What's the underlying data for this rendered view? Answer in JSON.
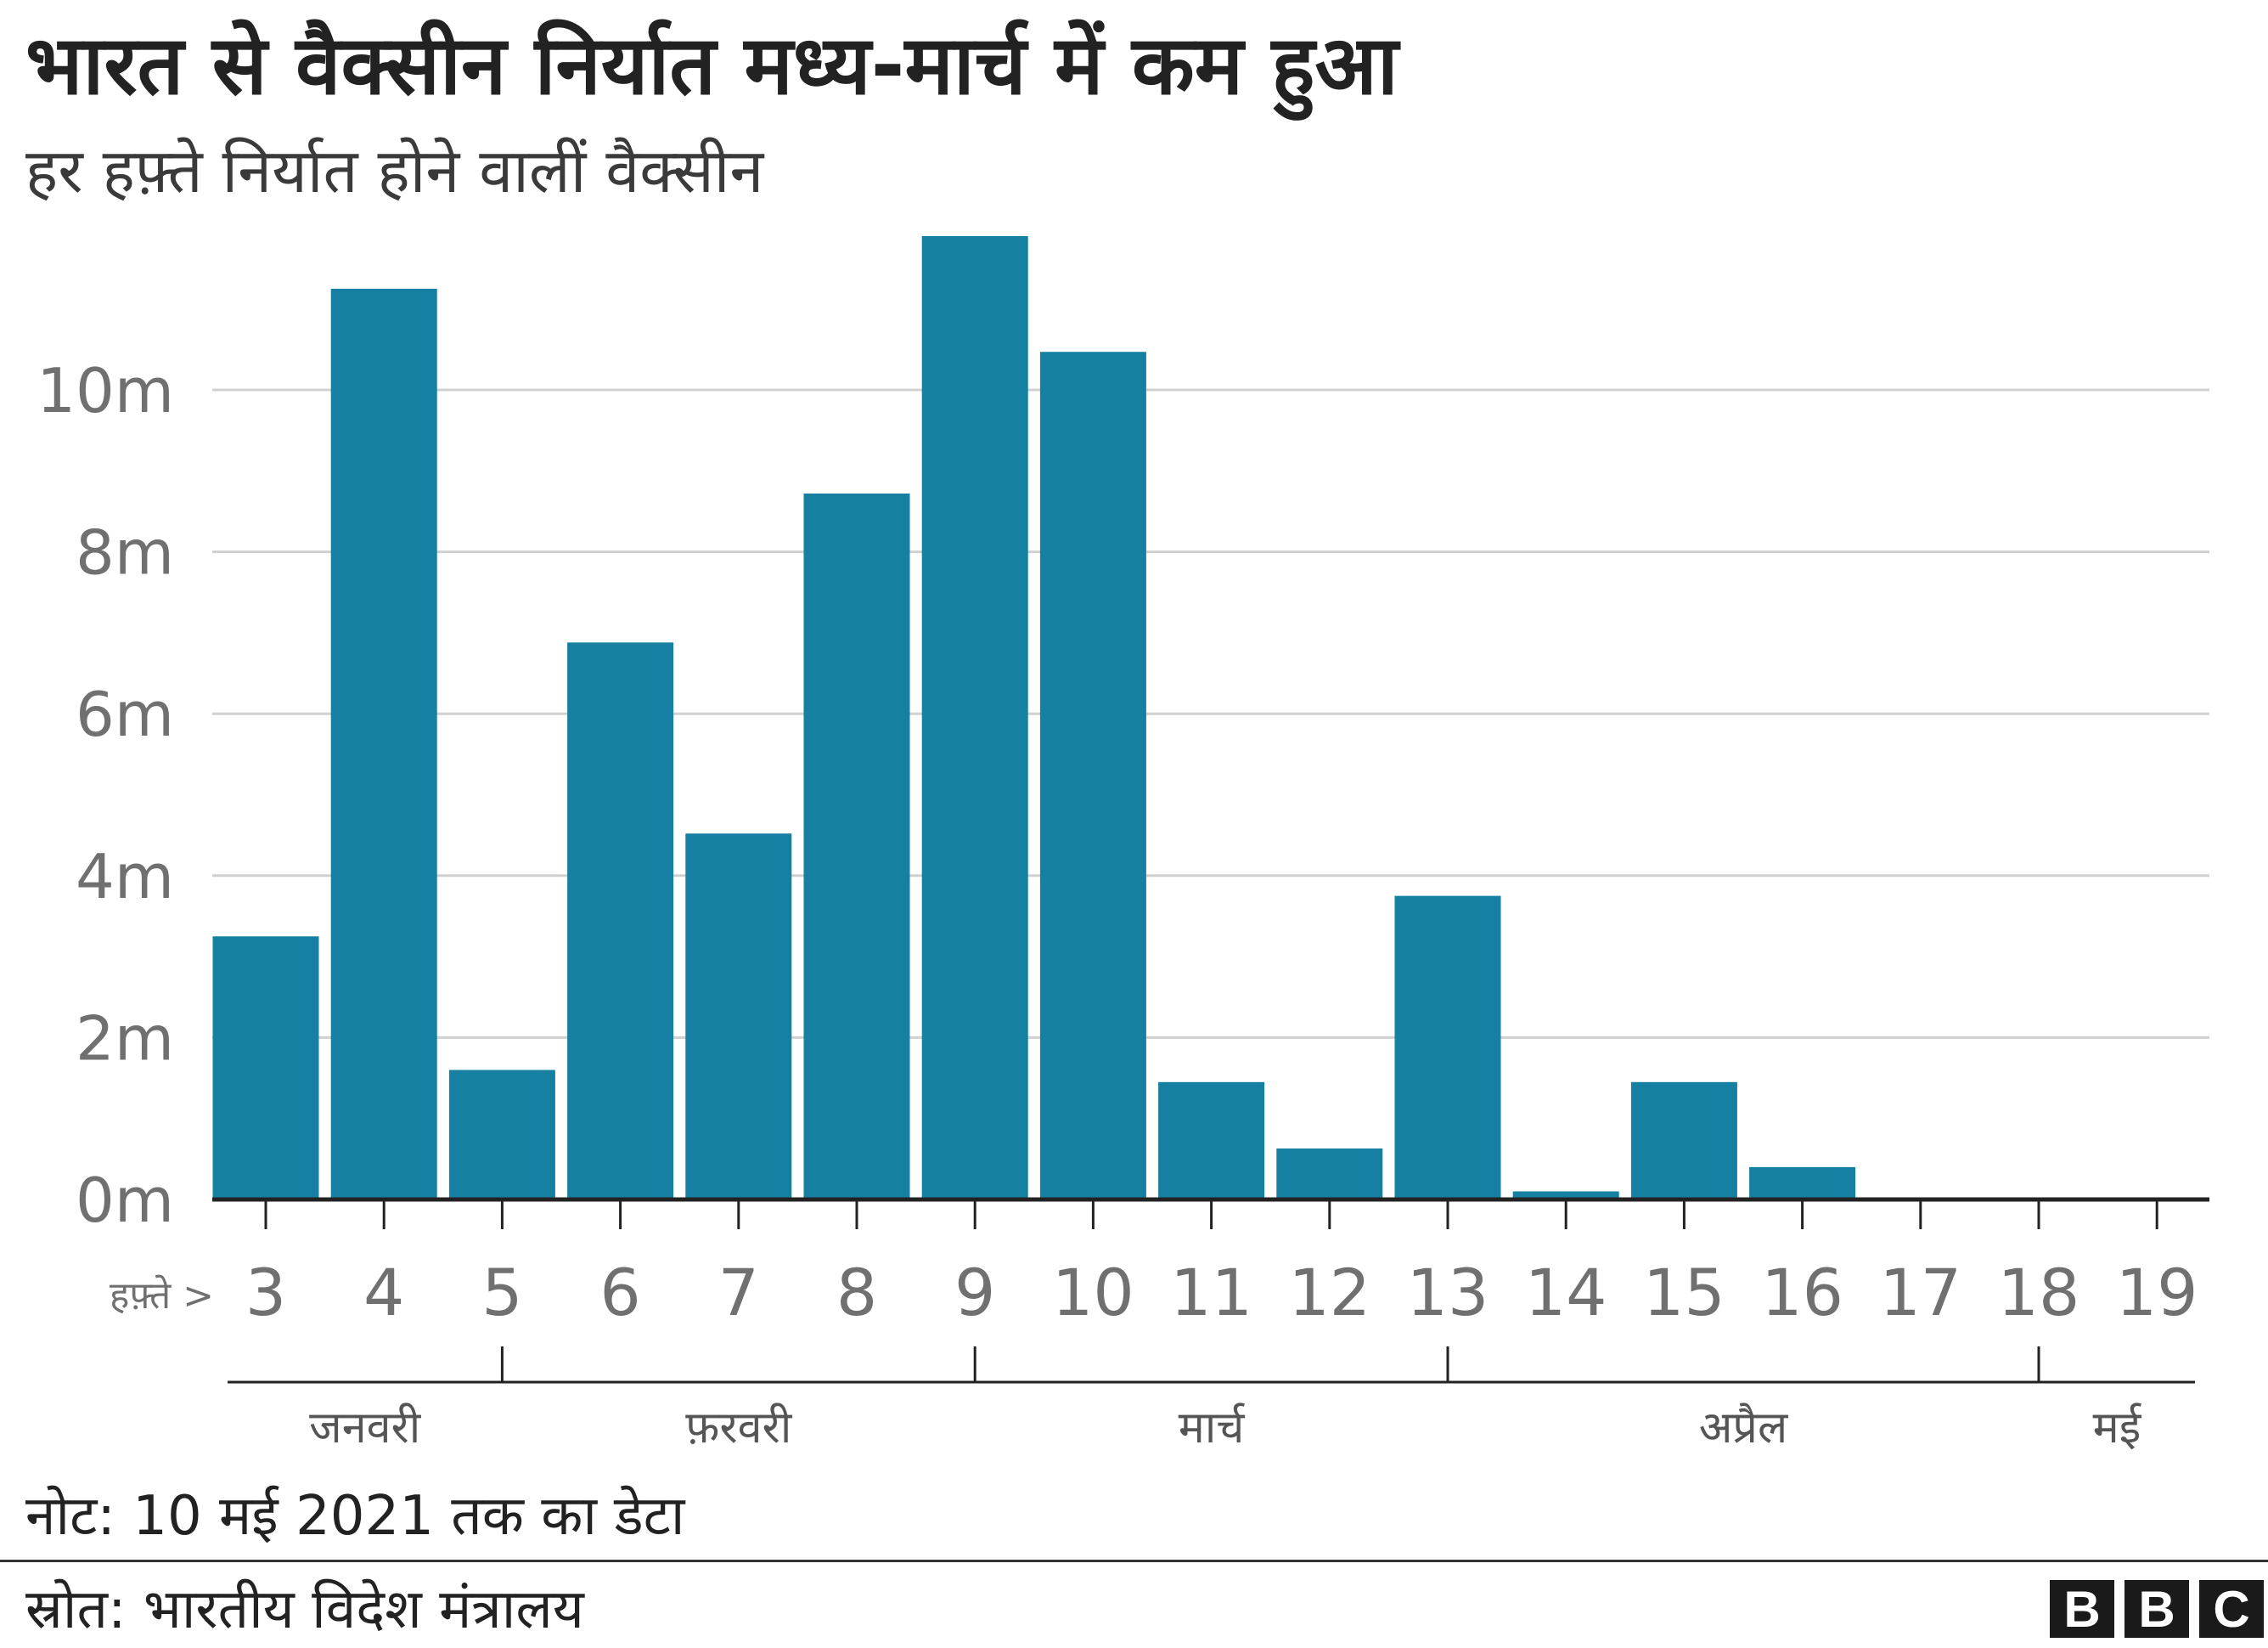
{
  "title": "भारत से वैक्सीन निर्यात मध्य-मार्च में कम हुआ",
  "subtitle": "हर हफ़्ते निर्यात होने वालीं वैक्सीन",
  "note": "नोट: 10 मई 2021 तक का डेटा",
  "source": "स्रोत: भारतीय विदेश मंत्रालय",
  "logo": [
    "B",
    "B",
    "C"
  ],
  "colors": {
    "bar": "#1580a2",
    "grid": "#d0d0d0",
    "axis": "#222222",
    "tick_text": "#707070"
  },
  "chart_data": {
    "type": "bar",
    "x_prefix": "हफ़्ते >",
    "categories": [
      "3",
      "4",
      "5",
      "6",
      "7",
      "8",
      "9",
      "10",
      "11",
      "12",
      "13",
      "14",
      "15",
      "16",
      "17",
      "18",
      "19"
    ],
    "values": [
      3.25,
      11.25,
      1.6,
      6.88,
      4.52,
      8.72,
      11.9,
      10.47,
      1.45,
      0.63,
      3.75,
      0.1,
      1.45,
      0.4,
      0,
      0,
      0
    ],
    "y_ticks": [
      0,
      2,
      4,
      6,
      8,
      10
    ],
    "y_tick_labels": [
      "0m",
      "2m",
      "4m",
      "6m",
      "8m",
      "10m"
    ],
    "ylim": [
      0,
      12
    ],
    "grid": true,
    "months": [
      {
        "label": "जनवरी",
        "start": "3",
        "end": "5"
      },
      {
        "label": "फ़रवरी",
        "start": "5",
        "end": "9"
      },
      {
        "label": "मार्च",
        "start": "9",
        "end": "13"
      },
      {
        "label": "अप्रैल",
        "start": "13",
        "end": "18"
      },
      {
        "label": "मई",
        "start": "18",
        "end": "19"
      }
    ]
  }
}
